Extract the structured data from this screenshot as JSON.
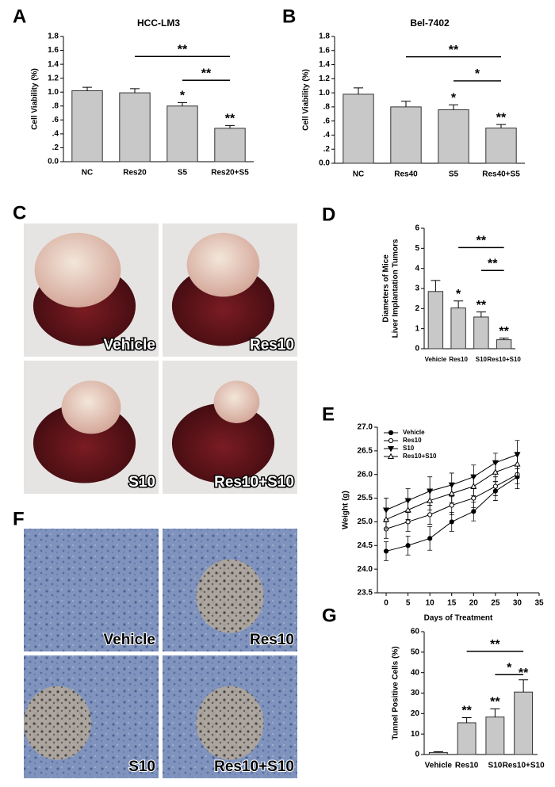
{
  "panel_letters": [
    "A",
    "B",
    "C",
    "D",
    "E",
    "F",
    "G"
  ],
  "photo_panels": [
    {
      "labels": [
        "Vehicle",
        "Res10",
        "S10",
        "Res10+S10"
      ]
    },
    {
      "labels": [
        "Vehicle",
        "Res10",
        "S10",
        "Res10+S10"
      ]
    }
  ],
  "chart_data": [
    {
      "type": "bar",
      "title": "HCC-LM3",
      "y_label": "Cell Viability (%)",
      "categories": [
        "NC",
        "Res20",
        "S5",
        "Res20+S5"
      ],
      "values": [
        1.02,
        0.99,
        0.8,
        0.48
      ],
      "errors": [
        0.05,
        0.06,
        0.05,
        0.04
      ],
      "annotations": [
        null,
        null,
        "*",
        "**"
      ],
      "brackets": [
        {
          "from": 1,
          "to": 3,
          "label": "**"
        },
        {
          "from": 2,
          "to": 3,
          "label": "**"
        }
      ],
      "color": "#c8c8c8",
      "ylim": [
        0,
        1.8
      ],
      "yticks": [
        {
          "value": 0,
          "label": "0.0"
        },
        {
          "value": 0.2,
          "label": ".2"
        },
        {
          "value": 0.4,
          "label": ".4"
        },
        {
          "value": 0.6,
          "label": ".6"
        },
        {
          "value": 0.8,
          "label": ".8"
        },
        {
          "value": 1,
          "label": "1.0"
        },
        1.2,
        1.4,
        1.6,
        1.8
      ]
    },
    {
      "type": "bar",
      "title": "Bel-7402",
      "y_label": "Cell Viability (%)",
      "categories": [
        "NC",
        "Res40",
        "S5",
        "Res40+S5"
      ],
      "values": [
        0.98,
        0.8,
        0.76,
        0.5
      ],
      "errors": [
        0.09,
        0.08,
        0.07,
        0.05
      ],
      "annotations": [
        null,
        null,
        "*",
        "**"
      ],
      "brackets": [
        {
          "from": 1,
          "to": 3,
          "label": "**"
        },
        {
          "from": 2,
          "to": 3,
          "label": "*"
        }
      ],
      "color": "#c8c8c8",
      "ylim": [
        0,
        1.8
      ],
      "yticks": [
        {
          "value": 0,
          "label": "0.0"
        },
        {
          "value": 0.2,
          "label": ".2"
        },
        {
          "value": 0.4,
          "label": ".4"
        },
        {
          "value": 0.6,
          "label": ".6"
        },
        {
          "value": 0.8,
          "label": ".8"
        },
        {
          "value": 1,
          "label": "1.0"
        },
        1.2,
        1.4,
        1.6,
        1.8
      ]
    },
    {
      "type": "bar",
      "y_label": [
        "Diameters of Mice",
        "Liver Implantation Tumors"
      ],
      "categories": [
        "Vehicle",
        "Res10",
        "S10",
        "Res10+S10"
      ],
      "values": [
        2.85,
        2.03,
        1.58,
        0.45
      ],
      "errors": [
        0.55,
        0.35,
        0.25,
        0.08
      ],
      "annotations": [
        null,
        "*",
        "**",
        "**"
      ],
      "brackets": [
        {
          "from": 1,
          "to": 3,
          "label": "**"
        },
        {
          "from": 2,
          "to": 3,
          "label": "**"
        }
      ],
      "color": "#c8c8c8",
      "ylim": [
        0,
        6
      ],
      "yticks": [
        0,
        1,
        2,
        3,
        4,
        5,
        6
      ]
    },
    {
      "type": "line",
      "x_label": "Days of Treatment",
      "y_label": "Weight (g)",
      "x": [
        0,
        5,
        10,
        15,
        20,
        25,
        30
      ],
      "series": [
        {
          "name": "Vehicle",
          "marker": "circle-filled",
          "color": "#000000",
          "values": [
            24.38,
            24.5,
            24.65,
            25.0,
            25.22,
            25.65,
            25.95
          ],
          "errors": [
            0.2,
            0.2,
            0.25,
            0.2,
            0.2,
            0.2,
            0.25
          ]
        },
        {
          "name": "Res10",
          "marker": "circle-open",
          "color": "#000000",
          "values": [
            24.85,
            25.0,
            25.15,
            25.35,
            25.5,
            25.75,
            26.0
          ],
          "errors": [
            0.2,
            0.2,
            0.2,
            0.2,
            0.2,
            0.2,
            0.2
          ]
        },
        {
          "name": "S10",
          "marker": "triangle-down-filled",
          "color": "#000000",
          "values": [
            25.25,
            25.45,
            25.65,
            25.78,
            25.95,
            26.25,
            26.42
          ],
          "errors": [
            0.25,
            0.25,
            0.3,
            0.25,
            0.25,
            0.2,
            0.3
          ]
        },
        {
          "name": "Res10+S10",
          "marker": "triangle-up-open",
          "color": "#000000",
          "values": [
            25.05,
            25.25,
            25.45,
            25.6,
            25.75,
            26.05,
            26.22
          ],
          "errors": [
            0.2,
            0.2,
            0.2,
            0.2,
            0.2,
            0.2,
            0.25
          ]
        }
      ],
      "legend": "upper-left",
      "xlim": [
        -2,
        35
      ],
      "xticks": [
        0,
        5,
        10,
        15,
        20,
        25,
        30,
        35
      ],
      "ylim": [
        23.5,
        27
      ],
      "yticks": [
        23.5,
        {
          "value": 24,
          "label": "24.0"
        },
        24.5,
        {
          "value": 25,
          "label": "25.0"
        },
        25.5,
        {
          "value": 26,
          "label": "26.0"
        },
        26.5,
        {
          "value": 27,
          "label": "27.0"
        }
      ]
    },
    {
      "type": "bar",
      "y_label": "Tunnel Positive Cells (%)",
      "categories": [
        "Vehicle",
        "Res10",
        "S10",
        "Res10+S10"
      ],
      "values": [
        1,
        15.5,
        18.3,
        30.5
      ],
      "errors": [
        0.4,
        2.5,
        4,
        6
      ],
      "annotations": [
        null,
        "**",
        "**",
        "**"
      ],
      "brackets": [
        {
          "from": 1,
          "to": 3,
          "label": "**"
        },
        {
          "from": 2,
          "to": 3,
          "label": "*"
        }
      ],
      "color": "#c8c8c8",
      "ylim": [
        0,
        60
      ],
      "yticks": [
        0,
        10,
        20,
        30,
        40,
        50,
        60
      ]
    }
  ]
}
